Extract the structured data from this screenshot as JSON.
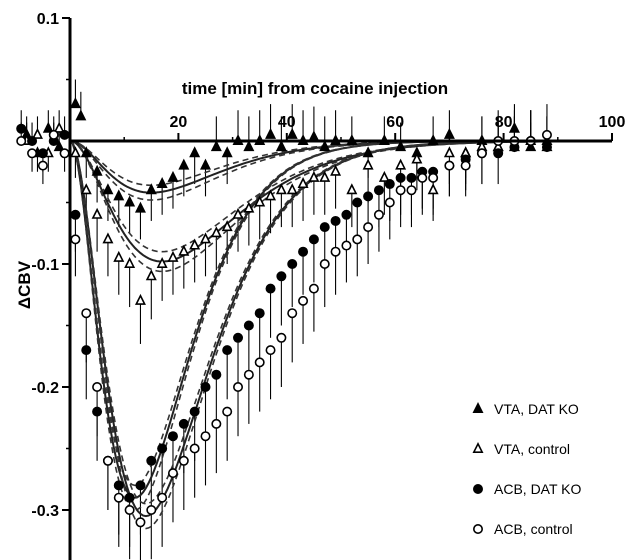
{
  "chart_data": {
    "type": "scatter",
    "title": "",
    "xlabel": "time [min] from cocaine injection",
    "ylabel": "ΔCBV",
    "xlim": [
      0,
      100
    ],
    "ylim": [
      -0.34,
      0.1
    ],
    "x_ticks": [
      20,
      40,
      60,
      80,
      100
    ],
    "y_ticks": [
      0.1,
      -0.1,
      -0.2,
      -0.3
    ],
    "x_tick_labels": [
      "20",
      "40",
      "60",
      "80",
      "100"
    ],
    "y_tick_labels": [
      "0.1",
      "-0.1",
      "-0.2",
      "-0.3"
    ],
    "grid": false,
    "legend_position": "bottom-right",
    "series": [
      {
        "name": "VTA, DAT KO",
        "marker": "filled-triangle",
        "fit": {
          "amplitude": -0.042,
          "peak_time": 15,
          "band": 0.006
        },
        "x": [
          -8,
          -6,
          -4,
          -2,
          1,
          2,
          3,
          5,
          7,
          9,
          11,
          13,
          15,
          17,
          19,
          21,
          23,
          25,
          27,
          29,
          31,
          33,
          35,
          37,
          39,
          41,
          43,
          45,
          47,
          49,
          52,
          55,
          58,
          61,
          64,
          67,
          70,
          73,
          76,
          79,
          82,
          85,
          88
        ],
        "y": [
          0.005,
          -0.01,
          0.01,
          -0.005,
          0.03,
          0.02,
          -0.01,
          -0.025,
          -0.04,
          -0.045,
          -0.05,
          -0.055,
          -0.04,
          -0.035,
          -0.03,
          -0.02,
          -0.01,
          -0.02,
          -0.005,
          -0.01,
          0.0,
          -0.005,
          0.0,
          0.005,
          -0.005,
          0.005,
          0.0,
          0.003,
          -0.005,
          0.0,
          0.0,
          -0.01,
          0.0,
          -0.005,
          -0.01,
          0.0,
          0.005,
          -0.01,
          0.0,
          -0.005,
          0.01,
          -0.005,
          0.0
        ],
        "err": [
          0.015,
          0.015,
          0.015,
          0.015,
          0.02,
          0.02,
          0.02,
          0.025,
          0.025,
          0.025,
          0.025,
          0.025,
          0.025,
          0.025,
          0.025,
          0.025,
          0.025,
          0.025,
          0.025,
          0.025,
          0.025,
          0.025,
          0.025,
          0.025,
          0.025,
          0.025,
          0.025,
          0.025,
          0.025,
          0.025,
          0.02,
          0.02,
          0.02,
          0.02,
          0.02,
          0.02,
          0.02,
          0.02,
          0.02,
          0.02,
          0.02,
          0.02,
          0.02
        ]
      },
      {
        "name": "VTA, control",
        "marker": "open-triangle",
        "fit": {
          "amplitude": -0.098,
          "peak_time": 17,
          "band": 0.008
        },
        "x": [
          -8,
          -6,
          -4,
          -2,
          1,
          3,
          5,
          7,
          9,
          11,
          13,
          15,
          17,
          19,
          21,
          23,
          25,
          27,
          29,
          31,
          33,
          35,
          37,
          39,
          41,
          43,
          45,
          47,
          49,
          52,
          55,
          58,
          61,
          64,
          67,
          70,
          73,
          76,
          79,
          82,
          85,
          88
        ],
        "y": [
          0.0,
          0.005,
          -0.01,
          0.01,
          -0.01,
          -0.04,
          -0.06,
          -0.08,
          -0.095,
          -0.1,
          -0.13,
          -0.11,
          -0.1,
          -0.095,
          -0.09,
          -0.085,
          -0.08,
          -0.075,
          -0.07,
          -0.06,
          -0.055,
          -0.05,
          -0.045,
          -0.04,
          -0.04,
          -0.035,
          -0.03,
          -0.03,
          -0.025,
          -0.04,
          -0.02,
          -0.03,
          -0.02,
          -0.015,
          -0.04,
          -0.01,
          -0.01,
          -0.005,
          -0.005,
          -0.005,
          0.0,
          -0.005
        ],
        "err": [
          0.015,
          0.015,
          0.015,
          0.015,
          0.02,
          0.025,
          0.03,
          0.03,
          0.03,
          0.035,
          0.035,
          0.035,
          0.03,
          0.03,
          0.03,
          0.03,
          0.03,
          0.03,
          0.03,
          0.03,
          0.03,
          0.03,
          0.03,
          0.03,
          0.03,
          0.03,
          0.03,
          0.03,
          0.03,
          0.03,
          0.03,
          0.03,
          0.025,
          0.025,
          0.025,
          0.025,
          0.025,
          0.025,
          0.025,
          0.025,
          0.025,
          0.025
        ]
      },
      {
        "name": "ACB, DAT KO",
        "marker": "filled-circle",
        "fit": {
          "amplitude": -0.29,
          "peak_time": 12,
          "band": 0.01
        },
        "x": [
          -9,
          -7,
          -5,
          -3,
          -1,
          1,
          3,
          5,
          7,
          9,
          11,
          13,
          15,
          17,
          19,
          21,
          23,
          25,
          27,
          29,
          31,
          33,
          35,
          37,
          39,
          41,
          43,
          45,
          47,
          49,
          51,
          53,
          55,
          57,
          59,
          61,
          63,
          65,
          67,
          70,
          73,
          76,
          79,
          82,
          85,
          88
        ],
        "y": [
          0.01,
          0.0,
          -0.01,
          0.0,
          0.005,
          -0.06,
          -0.17,
          -0.22,
          -0.26,
          -0.28,
          -0.29,
          -0.28,
          -0.26,
          -0.25,
          -0.24,
          -0.23,
          -0.22,
          -0.2,
          -0.19,
          -0.17,
          -0.16,
          -0.15,
          -0.14,
          -0.12,
          -0.11,
          -0.1,
          -0.09,
          -0.08,
          -0.07,
          -0.065,
          -0.06,
          -0.05,
          -0.045,
          -0.04,
          -0.035,
          -0.03,
          -0.03,
          -0.025,
          -0.025,
          -0.02,
          -0.015,
          -0.01,
          -0.01,
          -0.005,
          0.0,
          -0.005
        ],
        "err": [
          0.015,
          0.015,
          0.015,
          0.015,
          0.015,
          0.03,
          0.04,
          0.04,
          0.04,
          0.04,
          0.04,
          0.04,
          0.04,
          0.04,
          0.04,
          0.04,
          0.04,
          0.04,
          0.04,
          0.04,
          0.04,
          0.04,
          0.04,
          0.04,
          0.04,
          0.035,
          0.035,
          0.035,
          0.035,
          0.03,
          0.03,
          0.03,
          0.03,
          0.03,
          0.03,
          0.03,
          0.03,
          0.03,
          0.03,
          0.025,
          0.025,
          0.025,
          0.025,
          0.025,
          0.025,
          0.025
        ]
      },
      {
        "name": "ACB, control",
        "marker": "open-circle",
        "fit": {
          "amplitude": -0.305,
          "peak_time": 14,
          "band": 0.01
        },
        "x": [
          -9,
          -7,
          -5,
          -3,
          -1,
          1,
          3,
          5,
          7,
          9,
          11,
          13,
          15,
          17,
          19,
          21,
          23,
          25,
          27,
          29,
          31,
          33,
          35,
          37,
          39,
          41,
          43,
          45,
          47,
          49,
          51,
          53,
          55,
          57,
          59,
          61,
          63,
          65,
          67,
          70,
          73,
          76,
          79,
          82,
          85,
          88
        ],
        "y": [
          0.0,
          -0.01,
          -0.02,
          0.005,
          -0.01,
          -0.08,
          -0.14,
          -0.2,
          -0.26,
          -0.29,
          -0.3,
          -0.31,
          -0.3,
          -0.29,
          -0.27,
          -0.26,
          -0.25,
          -0.24,
          -0.23,
          -0.22,
          -0.2,
          -0.19,
          -0.18,
          -0.17,
          -0.16,
          -0.14,
          -0.13,
          -0.12,
          -0.1,
          -0.09,
          -0.085,
          -0.08,
          -0.07,
          -0.06,
          -0.05,
          -0.04,
          -0.04,
          -0.03,
          -0.03,
          -0.02,
          -0.02,
          -0.01,
          0.0,
          0.0,
          0.0,
          0.005
        ],
        "err": [
          0.015,
          0.015,
          0.015,
          0.015,
          0.015,
          0.03,
          0.04,
          0.04,
          0.04,
          0.04,
          0.04,
          0.04,
          0.04,
          0.04,
          0.04,
          0.04,
          0.04,
          0.04,
          0.04,
          0.04,
          0.04,
          0.04,
          0.04,
          0.04,
          0.04,
          0.04,
          0.035,
          0.035,
          0.035,
          0.035,
          0.03,
          0.03,
          0.03,
          0.03,
          0.03,
          0.03,
          0.03,
          0.03,
          0.03,
          0.025,
          0.025,
          0.025,
          0.025,
          0.025,
          0.025,
          0.025
        ]
      }
    ]
  }
}
